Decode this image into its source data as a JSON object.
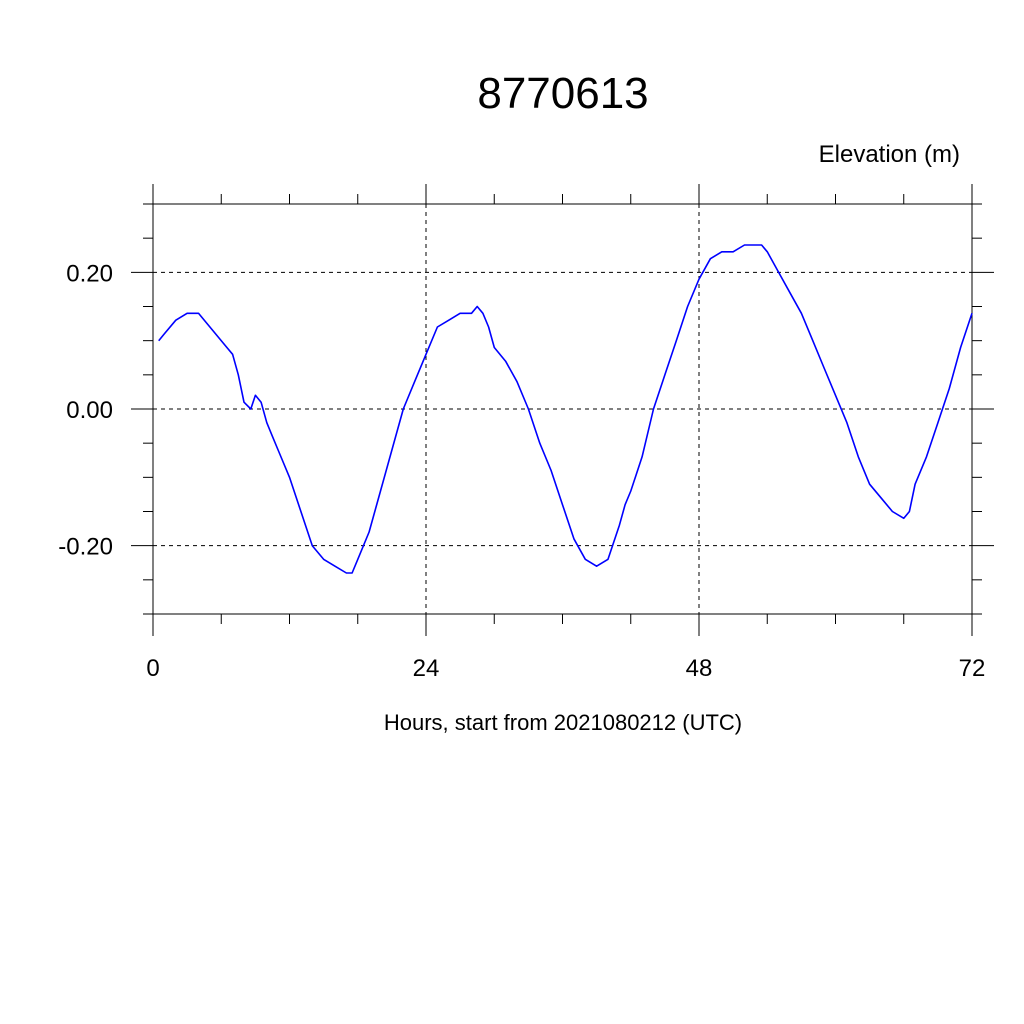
{
  "chart_data": {
    "type": "line",
    "title": "8770613",
    "ylabel": "Elevation (m)",
    "xlabel": "Hours, start from 2021080212 (UTC)",
    "xlim": [
      0,
      72
    ],
    "ylim": [
      -0.3,
      0.3
    ],
    "x_ticks": [
      0,
      24,
      48,
      72
    ],
    "x_tick_labels": [
      "0",
      "24",
      "48",
      "72"
    ],
    "y_ticks": [
      -0.2,
      0.0,
      0.2
    ],
    "y_tick_labels": [
      "-0.20",
      "0.00",
      "0.20"
    ],
    "grid": "dashed at labeled ticks",
    "series": [
      {
        "color": "#0000ff",
        "x": [
          0.5,
          1.0,
          2.0,
          3.0,
          3.5,
          4.0,
          5.0,
          6.0,
          6.5,
          7.0,
          7.5,
          8.0,
          8.6,
          9.0,
          9.5,
          10.0,
          10.5,
          11.0,
          12.0,
          13.0,
          14.0,
          15.0,
          16.0,
          17.0,
          17.5,
          18.0,
          19.0,
          20.0,
          21.0,
          22.0,
          23.0,
          24.0,
          25.0,
          26.0,
          27.0,
          28.0,
          28.5,
          29.0,
          29.5,
          30.0,
          31.0,
          32.0,
          33.0,
          34.0,
          35.0,
          36.0,
          37.0,
          38.0,
          39.0,
          40.0,
          41.0,
          41.5,
          42.0,
          43.0,
          44.0,
          45.0,
          46.0,
          47.0,
          48.0,
          49.0,
          50.0,
          51.0,
          52.0,
          53.0,
          53.5,
          54.0,
          55.0,
          56.0,
          57.0,
          58.0,
          59.0,
          60.0,
          61.0,
          62.0,
          63.0,
          64.0,
          65.0,
          66.0,
          66.5,
          67.0,
          68.0,
          69.0,
          70.0,
          71.0,
          72.0
        ],
        "values": [
          0.1,
          0.11,
          0.13,
          0.14,
          0.14,
          0.14,
          0.12,
          0.1,
          0.09,
          0.08,
          0.05,
          0.01,
          0.0,
          0.02,
          0.01,
          -0.02,
          -0.04,
          -0.06,
          -0.1,
          -0.15,
          -0.2,
          -0.22,
          -0.23,
          -0.24,
          -0.24,
          -0.22,
          -0.18,
          -0.12,
          -0.06,
          0.0,
          0.04,
          0.08,
          0.12,
          0.13,
          0.14,
          0.14,
          0.15,
          0.14,
          0.12,
          0.09,
          0.07,
          0.04,
          0.0,
          -0.05,
          -0.09,
          -0.14,
          -0.19,
          -0.22,
          -0.23,
          -0.22,
          -0.17,
          -0.14,
          -0.12,
          -0.07,
          0.0,
          0.05,
          0.1,
          0.15,
          0.19,
          0.22,
          0.23,
          0.23,
          0.24,
          0.24,
          0.24,
          0.23,
          0.2,
          0.17,
          0.14,
          0.1,
          0.06,
          0.02,
          -0.02,
          -0.07,
          -0.11,
          -0.13,
          -0.15,
          -0.16,
          -0.15,
          -0.11,
          -0.07,
          -0.02,
          0.03,
          0.09,
          0.14
        ]
      }
    ]
  }
}
